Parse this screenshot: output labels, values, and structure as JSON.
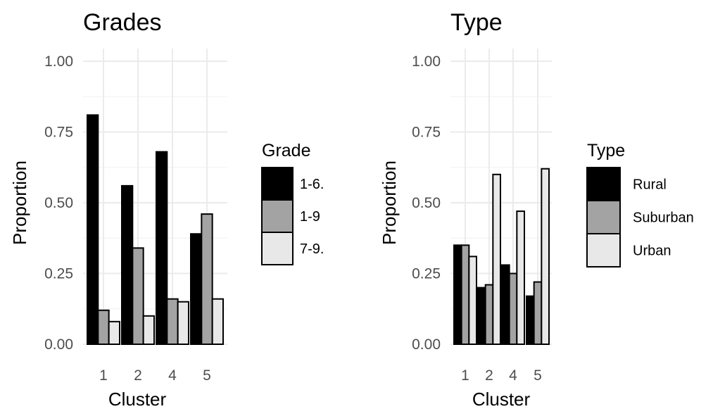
{
  "colors": {
    "dark": "#000000",
    "mid": "#a3a3a3",
    "light": "#e8e8e8",
    "grid": "#ebebeb",
    "tick_text": "#4d4d4d"
  },
  "chart_data": [
    {
      "type": "bar",
      "title": "Grades",
      "xlabel": "Cluster",
      "ylabel": "Proportion",
      "categories": [
        "1",
        "2",
        "4",
        "5"
      ],
      "ylim": [
        0,
        1
      ],
      "yticks": [
        "0.00",
        "0.25",
        "0.50",
        "0.75",
        "1.00"
      ],
      "grid": true,
      "legend": {
        "title": "Grade",
        "placement": "right"
      },
      "series": [
        {
          "name": "1-6.",
          "color": "#000000",
          "values": [
            0.81,
            0.56,
            0.68,
            0.39
          ]
        },
        {
          "name": "1-9",
          "color": "#a3a3a3",
          "values": [
            0.12,
            0.34,
            0.16,
            0.46
          ]
        },
        {
          "name": "7-9.",
          "color": "#e8e8e8",
          "values": [
            0.08,
            0.1,
            0.15,
            0.16
          ]
        }
      ]
    },
    {
      "type": "bar",
      "title": "Type",
      "xlabel": "Cluster",
      "ylabel": "Proportion",
      "categories": [
        "1",
        "2",
        "4",
        "5"
      ],
      "ylim": [
        0,
        1
      ],
      "yticks": [
        "0.00",
        "0.25",
        "0.50",
        "0.75",
        "1.00"
      ],
      "grid": true,
      "legend": {
        "title": "Type",
        "placement": "right"
      },
      "series": [
        {
          "name": "Rural",
          "color": "#000000",
          "values": [
            0.35,
            0.2,
            0.28,
            0.17
          ]
        },
        {
          "name": "Suburban",
          "color": "#a3a3a3",
          "values": [
            0.35,
            0.21,
            0.25,
            0.22
          ]
        },
        {
          "name": "Urban",
          "color": "#e8e8e8",
          "values": [
            0.31,
            0.6,
            0.47,
            0.62
          ]
        }
      ]
    }
  ]
}
